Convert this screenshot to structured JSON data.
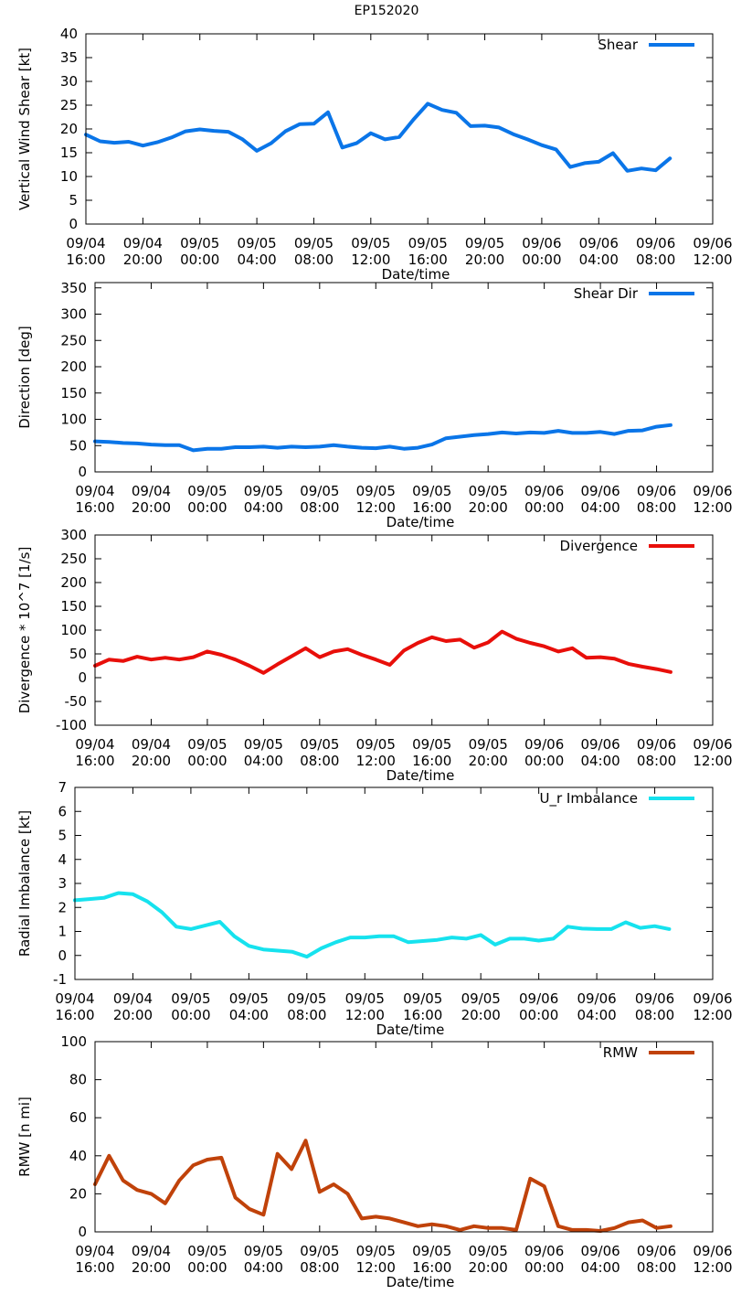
{
  "figure_title": "EP152020",
  "x_ticks": [
    [
      "09/04",
      "16:00"
    ],
    [
      "09/04",
      "20:00"
    ],
    [
      "09/05",
      "00:00"
    ],
    [
      "09/05",
      "04:00"
    ],
    [
      "09/05",
      "08:00"
    ],
    [
      "09/05",
      "12:00"
    ],
    [
      "09/05",
      "16:00"
    ],
    [
      "09/05",
      "20:00"
    ],
    [
      "09/06",
      "00:00"
    ],
    [
      "09/06",
      "04:00"
    ],
    [
      "09/06",
      "08:00"
    ],
    [
      "09/06",
      "12:00"
    ]
  ],
  "chart_data": [
    {
      "type": "line",
      "title": "",
      "xlabel": "Date/time",
      "ylabel": "Vertical Wind Shear [kt]",
      "xlim": [
        0,
        44
      ],
      "ylim": [
        0,
        40
      ],
      "yticks": [
        0,
        5,
        10,
        15,
        20,
        25,
        30,
        35,
        40
      ],
      "series": [
        {
          "name": "Shear",
          "color": "#0a75e8",
          "x": [
            0,
            1,
            2,
            3,
            4,
            5,
            6,
            7,
            8,
            9,
            10,
            11,
            12,
            13,
            14,
            15,
            16,
            17,
            18,
            19,
            20,
            21,
            22,
            23,
            24,
            25,
            26,
            27,
            28,
            29,
            30,
            31,
            32,
            33,
            34,
            35,
            36,
            37,
            38,
            39,
            40,
            41
          ],
          "values": [
            18.8,
            17.4,
            17.1,
            17.3,
            16.5,
            17.2,
            18.2,
            19.5,
            19.9,
            19.6,
            19.4,
            17.8,
            15.4,
            17.0,
            19.5,
            21.0,
            21.1,
            23.5,
            16.1,
            17.0,
            19.1,
            17.8,
            18.3,
            22.0,
            25.3,
            24.0,
            23.4,
            20.6,
            20.7,
            20.3,
            18.9,
            17.8,
            16.6,
            15.7,
            12.0,
            12.8,
            13.1,
            14.9,
            11.2,
            11.7,
            11.3,
            13.8
          ]
        }
      ]
    },
    {
      "type": "line",
      "title": "",
      "xlabel": "Date/time",
      "ylabel": "Direction [deg]",
      "xlim": [
        0,
        44
      ],
      "ylim": [
        0,
        360
      ],
      "yticks": [
        0,
        50,
        100,
        150,
        200,
        250,
        300,
        350
      ],
      "series": [
        {
          "name": "Shear Dir",
          "color": "#0a75e8",
          "x": [
            0,
            1,
            2,
            3,
            4,
            5,
            6,
            7,
            8,
            9,
            10,
            11,
            12,
            13,
            14,
            15,
            16,
            17,
            18,
            19,
            20,
            21,
            22,
            23,
            24,
            25,
            26,
            27,
            28,
            29,
            30,
            31,
            32,
            33,
            34,
            35,
            36,
            37,
            38,
            39,
            40,
            41
          ],
          "values": [
            58,
            57,
            55,
            54,
            52,
            51,
            51,
            41,
            44,
            44,
            47,
            47,
            48,
            46,
            48,
            47,
            48,
            51,
            48,
            46,
            45,
            48,
            44,
            46,
            52,
            64,
            67,
            70,
            72,
            75,
            73,
            75,
            74,
            78,
            74,
            74,
            76,
            72,
            78,
            79,
            86,
            89
          ]
        }
      ]
    },
    {
      "type": "line",
      "title": "",
      "xlabel": "Date/time",
      "ylabel": "Divergence * 10^7 [1/s]",
      "xlim": [
        0,
        44
      ],
      "ylim": [
        -100,
        300
      ],
      "yticks": [
        -100,
        -50,
        0,
        50,
        100,
        150,
        200,
        250,
        300
      ],
      "series": [
        {
          "name": "Divergence",
          "color": "#e80f0a",
          "x": [
            0,
            1,
            2,
            3,
            4,
            5,
            6,
            7,
            8,
            9,
            10,
            11,
            12,
            13,
            14,
            15,
            16,
            17,
            18,
            19,
            20,
            21,
            22,
            23,
            24,
            25,
            26,
            27,
            28,
            29,
            30,
            31,
            32,
            33,
            34,
            35,
            36,
            37,
            38,
            39,
            40,
            41
          ],
          "values": [
            25,
            38,
            35,
            44,
            38,
            42,
            38,
            43,
            55,
            48,
            38,
            25,
            10,
            28,
            45,
            62,
            43,
            55,
            60,
            48,
            38,
            27,
            57,
            73,
            85,
            77,
            80,
            63,
            74,
            97,
            82,
            73,
            66,
            55,
            62,
            42,
            43,
            40,
            29,
            23,
            18,
            12
          ]
        }
      ]
    },
    {
      "type": "line",
      "title": "",
      "xlabel": "Date/time",
      "ylabel": "Radial Imbalance [kt]",
      "xlim": [
        0,
        44
      ],
      "ylim": [
        -1,
        7
      ],
      "yticks": [
        -1,
        0,
        1,
        2,
        3,
        4,
        5,
        6,
        7
      ],
      "series": [
        {
          "name": "U_r Imbalance",
          "color": "#16e2ee",
          "x": [
            0,
            1,
            2,
            3,
            4,
            5,
            6,
            7,
            8,
            9,
            10,
            11,
            12,
            13,
            14,
            15,
            16,
            17,
            18,
            19,
            20,
            21,
            22,
            23,
            24,
            25,
            26,
            27,
            28,
            29,
            30,
            31,
            32,
            33,
            34,
            35,
            36,
            37,
            38,
            39,
            40,
            41
          ],
          "values": [
            2.3,
            2.35,
            2.4,
            2.6,
            2.55,
            2.25,
            1.8,
            1.2,
            1.1,
            1.25,
            1.4,
            0.8,
            0.4,
            0.25,
            0.2,
            0.15,
            -0.05,
            0.3,
            0.55,
            0.75,
            0.75,
            0.8,
            0.8,
            0.55,
            0.6,
            0.65,
            0.75,
            0.7,
            0.85,
            0.45,
            0.7,
            0.7,
            0.62,
            0.7,
            1.2,
            1.12,
            1.1,
            1.1,
            1.38,
            1.15,
            1.22,
            1.1
          ]
        }
      ]
    },
    {
      "type": "line",
      "title": "",
      "xlabel": "Date/time",
      "ylabel": "RMW [n mi]",
      "xlim": [
        0,
        44
      ],
      "ylim": [
        0,
        100
      ],
      "yticks": [
        0,
        20,
        40,
        60,
        80,
        100
      ],
      "series": [
        {
          "name": "RMW",
          "color": "#c0420a",
          "x": [
            0,
            1,
            2,
            3,
            4,
            5,
            6,
            7,
            8,
            9,
            10,
            11,
            12,
            13,
            14,
            15,
            16,
            17,
            18,
            19,
            20,
            21,
            22,
            23,
            24,
            25,
            26,
            27,
            28,
            29,
            30,
            31,
            32,
            33,
            34,
            35,
            36,
            37,
            38,
            39,
            40,
            41
          ],
          "values": [
            25,
            40,
            27,
            22,
            20,
            15,
            27,
            35,
            38,
            39,
            18,
            12,
            9,
            41,
            33,
            48,
            21,
            25,
            20,
            7,
            8,
            7,
            5,
            3,
            4,
            3,
            1,
            3,
            2,
            2,
            1,
            28,
            24,
            3,
            1,
            1,
            0.5,
            2,
            5,
            6,
            2,
            3
          ]
        }
      ]
    }
  ]
}
